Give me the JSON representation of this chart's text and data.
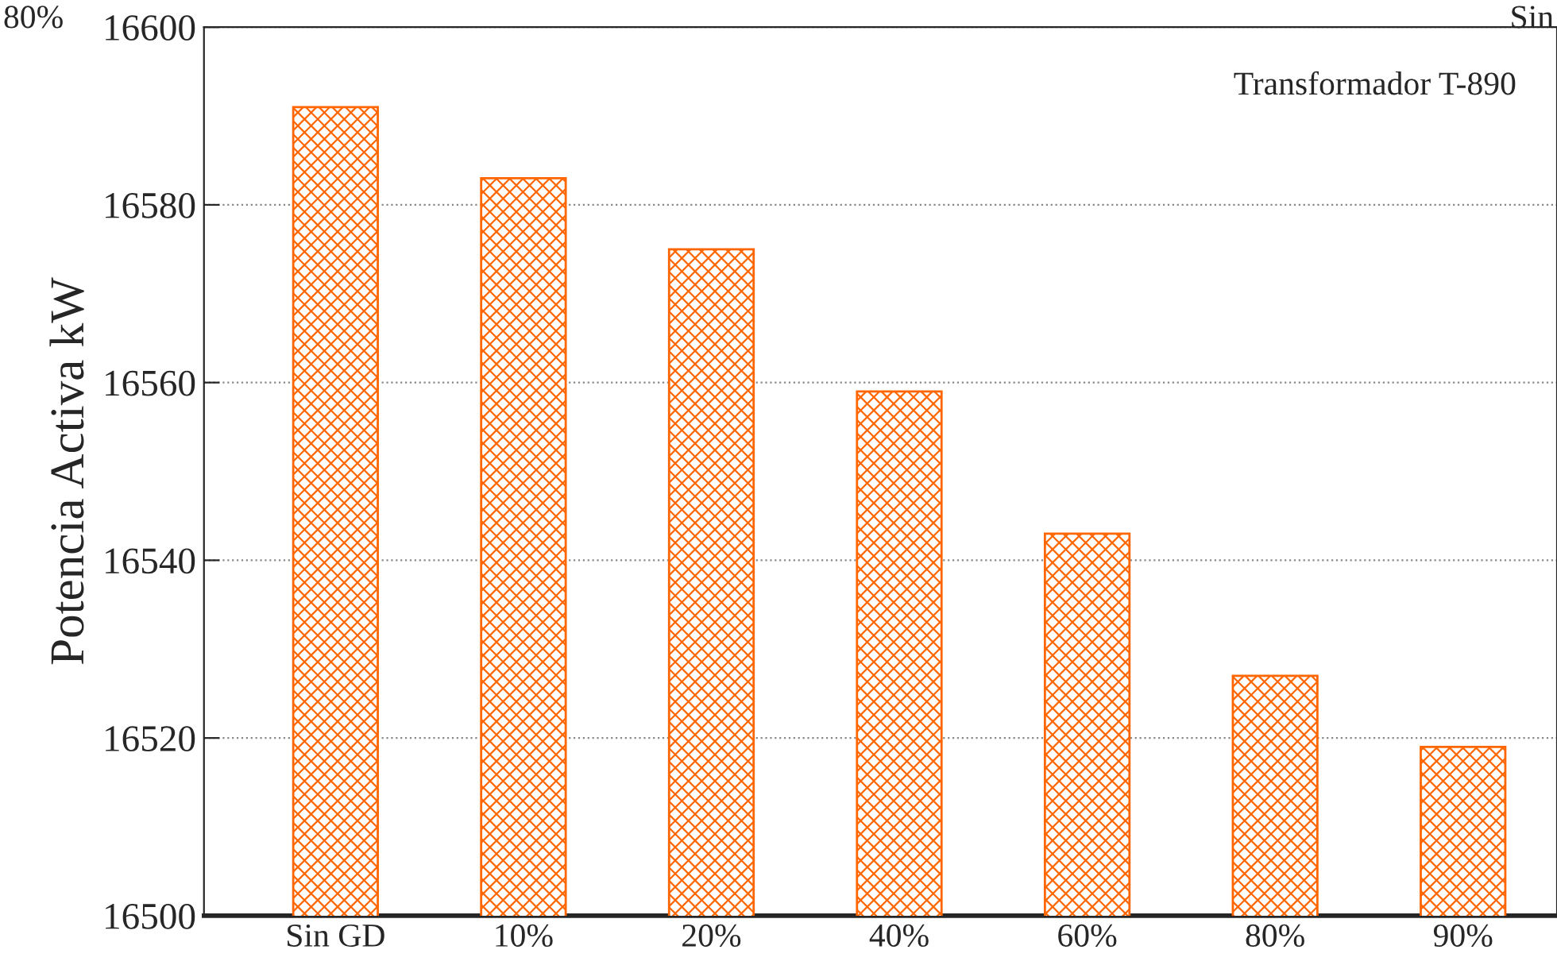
{
  "chart_data": {
    "type": "bar",
    "ylabel": "Potencia Activa kW",
    "categories": [
      "Sin GD",
      "10%",
      "20%",
      "40%",
      "60%",
      "80%",
      "90%"
    ],
    "values": [
      16591,
      16583,
      16575,
      16559,
      16543,
      16527,
      16519
    ],
    "color": "#ff6600",
    "ylim": [
      16500,
      16600
    ],
    "yticks": [
      16500,
      16520,
      16540,
      16560,
      16580,
      16600
    ],
    "grid": "y",
    "annotations": [
      "Transformador T-890",
      "80%",
      "Sin"
    ]
  }
}
